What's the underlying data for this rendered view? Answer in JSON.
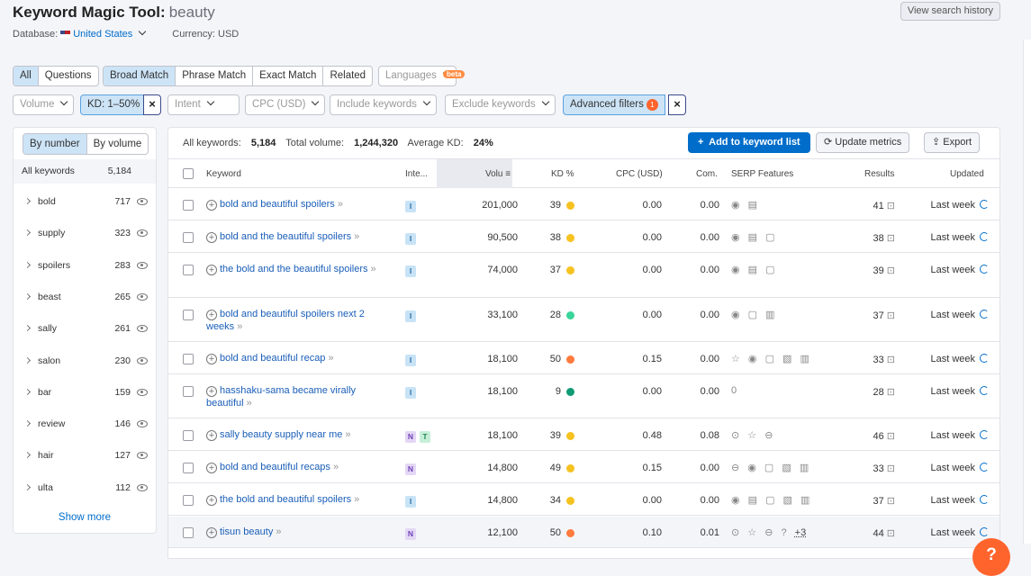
{
  "header": {
    "title": "Keyword Magic Tool:",
    "query": "beauty",
    "database_label": "Database:",
    "country": "United States",
    "currency": "Currency: USD",
    "view_history": "View search history"
  },
  "match_tabs": [
    "All",
    "Questions",
    "Broad Match",
    "Phrase Match",
    "Exact Match",
    "Related"
  ],
  "languages": {
    "label": "Languages",
    "badge": "beta"
  },
  "filters": {
    "volume": "Volume",
    "kd": "KD: 1–50%",
    "intent": "Intent",
    "cpc": "CPC (USD)",
    "include": "Include keywords",
    "exclude": "Exclude keywords",
    "advanced": "Advanced filters",
    "advanced_count": "1"
  },
  "sidebar": {
    "by_number": "By number",
    "by_volume": "By volume",
    "all_label": "All keywords",
    "all_count": "5,184",
    "show_more": "Show more",
    "items": [
      {
        "label": "bold",
        "count": "717"
      },
      {
        "label": "supply",
        "count": "323"
      },
      {
        "label": "spoilers",
        "count": "283"
      },
      {
        "label": "beast",
        "count": "265"
      },
      {
        "label": "sally",
        "count": "261"
      },
      {
        "label": "salon",
        "count": "230"
      },
      {
        "label": "bar",
        "count": "159"
      },
      {
        "label": "review",
        "count": "146"
      },
      {
        "label": "hair",
        "count": "127"
      },
      {
        "label": "ulta",
        "count": "112"
      }
    ]
  },
  "stats": {
    "all_label": "All keywords:",
    "all_value": "5,184",
    "vol_label": "Total volume:",
    "vol_value": "1,244,320",
    "kd_label": "Average KD:",
    "kd_value": "24%"
  },
  "actions": {
    "add": "Add to keyword list",
    "update": "Update metrics",
    "export": "Export"
  },
  "columns": [
    "Keyword",
    "Inte...",
    "Volu",
    "KD %",
    "CPC (USD)",
    "Com.",
    "SERP Features",
    "Results",
    "Updated"
  ],
  "colors": {
    "yellow": "#f5c220",
    "green": "#3ad59a",
    "orange": "#ff7a3d",
    "teal": "#0f9b75"
  },
  "rows": [
    {
      "kw1": "bold and beautiful spoilers",
      "kw2": "",
      "intent": [
        "I"
      ],
      "volume": "201,000",
      "kd": "39",
      "kdcolor": "#f5c220",
      "cpc": "0.00",
      "com": "0.00",
      "serp": "◉ ▤",
      "results": "41",
      "updated": "Last week"
    },
    {
      "kw1": "bold and the beautiful spoilers",
      "kw2": "",
      "intent": [
        "I"
      ],
      "volume": "90,500",
      "kd": "38",
      "kdcolor": "#f5c220",
      "cpc": "0.00",
      "com": "0.00",
      "serp": "◉ ▤ ▢",
      "results": "38",
      "updated": "Last week"
    },
    {
      "kw1": "the bold and the beautiful spoilers",
      "kw2": "",
      "intent": [
        "I"
      ],
      "volume": "74,000",
      "kd": "37",
      "kdcolor": "#f5c220",
      "cpc": "0.00",
      "com": "0.00",
      "serp": "◉ ▤ ▢",
      "results": "39",
      "updated": "Last week"
    },
    {
      "kw1": "bold and beautiful spoilers next 2",
      "kw2": "weeks",
      "intent": [
        "I"
      ],
      "volume": "33,100",
      "kd": "28",
      "kdcolor": "#3ad59a",
      "cpc": "0.00",
      "com": "0.00",
      "serp": "◉ ▢ ▥",
      "results": "37",
      "updated": "Last week"
    },
    {
      "kw1": "bold and beautiful recap",
      "kw2": "",
      "intent": [
        "I"
      ],
      "volume": "18,100",
      "kd": "50",
      "kdcolor": "#ff7a3d",
      "cpc": "0.15",
      "com": "0.00",
      "serp": "☆ ◉ ▢ ▧ ▥",
      "results": "33",
      "updated": "Last week"
    },
    {
      "kw1": "hasshaku-sama became virally",
      "kw2": "beautiful",
      "intent": [
        "I"
      ],
      "volume": "18,100",
      "kd": "9",
      "kdcolor": "#0f9b75",
      "cpc": "0.00",
      "com": "0.00",
      "serp": "0",
      "results": "28",
      "updated": "Last week"
    },
    {
      "kw1": "sally beauty supply near me",
      "kw2": "",
      "intent": [
        "N",
        "T"
      ],
      "volume": "18,100",
      "kd": "39",
      "kdcolor": "#f5c220",
      "cpc": "0.48",
      "com": "0.08",
      "serp": "⊙ ☆ ⊖",
      "results": "46",
      "updated": "Last week"
    },
    {
      "kw1": "bold and beautiful recaps",
      "kw2": "",
      "intent": [
        "N"
      ],
      "volume": "14,800",
      "kd": "49",
      "kdcolor": "#f5c220",
      "cpc": "0.15",
      "com": "0.00",
      "serp": "⊖ ◉ ▢ ▧ ▥",
      "results": "33",
      "updated": "Last week"
    },
    {
      "kw1": "the bold and beautiful spoilers",
      "kw2": "",
      "intent": [
        "I"
      ],
      "volume": "14,800",
      "kd": "34",
      "kdcolor": "#f5c220",
      "cpc": "0.00",
      "com": "0.00",
      "serp": "◉ ▤ ▢ ▧ ▥",
      "results": "37",
      "updated": "Last week"
    },
    {
      "kw1": "tisun beauty",
      "kw2": "",
      "intent": [
        "N"
      ],
      "volume": "12,100",
      "kd": "50",
      "kdcolor": "#ff7a3d",
      "cpc": "0.10",
      "com": "0.01",
      "serp": "⊙ ☆ ⊖ ?",
      "more": "+3",
      "results": "44",
      "updated": "Last week"
    }
  ],
  "help": "?"
}
